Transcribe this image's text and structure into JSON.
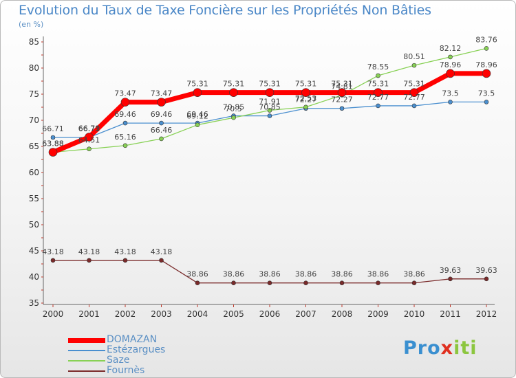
{
  "chart_data": {
    "type": "line",
    "title": "Evolution du Taux de Taxe Foncière sur les Propriétés Non Bâties",
    "ylabel": "(en %)",
    "xlabel": "",
    "categories": [
      "2000",
      "2001",
      "2002",
      "2003",
      "2004",
      "2005",
      "2006",
      "2007",
      "2008",
      "2009",
      "2010",
      "2011",
      "2012"
    ],
    "ylim": [
      35,
      85
    ],
    "yticks": [
      35,
      40,
      45,
      50,
      55,
      60,
      65,
      70,
      75,
      80,
      85
    ],
    "grid": false,
    "legend_position": "bottom-left",
    "series": [
      {
        "name": "DOMAZAN",
        "color": "#ff0000",
        "values": [
          63.88,
          66.79,
          73.47,
          73.47,
          75.31,
          75.31,
          75.31,
          75.31,
          75.31,
          75.31,
          75.31,
          78.96,
          78.96
        ]
      },
      {
        "name": "Estézargues",
        "color": "#4a8fcf",
        "values": [
          66.71,
          66.71,
          69.46,
          69.46,
          69.46,
          70.85,
          70.85,
          72.27,
          72.27,
          72.77,
          72.77,
          73.5,
          73.5
        ]
      },
      {
        "name": "Saze",
        "color": "#88d155",
        "values": [
          63.88,
          64.51,
          65.16,
          66.46,
          69.12,
          70.5,
          71.91,
          72.53,
          74.81,
          78.55,
          80.51,
          82.12,
          83.76
        ]
      },
      {
        "name": "Fournès",
        "color": "#7a2a2a",
        "values": [
          43.18,
          43.18,
          43.18,
          43.18,
          38.86,
          38.86,
          38.86,
          38.86,
          38.86,
          38.86,
          38.86,
          39.63,
          39.63
        ]
      }
    ]
  },
  "logo": {
    "p1": "Pro",
    "p2": "x",
    "p3": "iti"
  }
}
